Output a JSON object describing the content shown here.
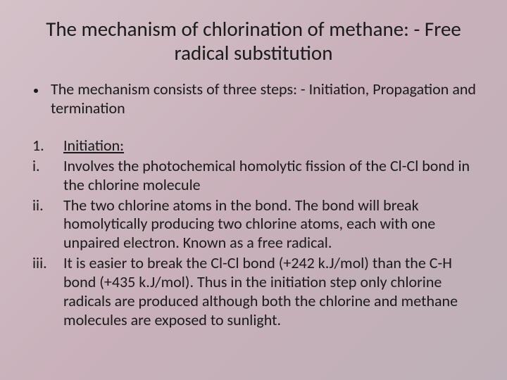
{
  "slide": {
    "background_gradient": [
      "#d4c2c9",
      "#c9b0ba",
      "#beb0b8"
    ],
    "text_color": "#1a1a1a",
    "font_family": "Calibri",
    "title": "The mechanism of chlorination of methane: - Free radical substitution",
    "title_fontsize": 29,
    "bullet": "The mechanism consists of three steps: - Initiation, Propagation and termination",
    "body_fontsize": 22,
    "items": [
      {
        "marker": "1.",
        "text": "Initiation:",
        "underline": true
      },
      {
        "marker": "i.",
        "text": "Involves the photochemical homolytic fission of the Cl-Cl bond in the chlorine molecule",
        "underline": false
      },
      {
        "marker": "ii.",
        "text": "The two chlorine atoms in the bond. The bond will break homolytically producing two chlorine atoms, each with one unpaired electron. Known as a free radical.",
        "underline": false
      },
      {
        "marker": "iii.",
        "text": "It is easier to break the Cl-Cl bond (+242 k.J/mol) than the C-H bond (+435 k.J/mol). Thus in the initiation step only chlorine radicals are produced although both the chlorine and methane molecules are exposed to sunlight.",
        "underline": false
      }
    ]
  }
}
